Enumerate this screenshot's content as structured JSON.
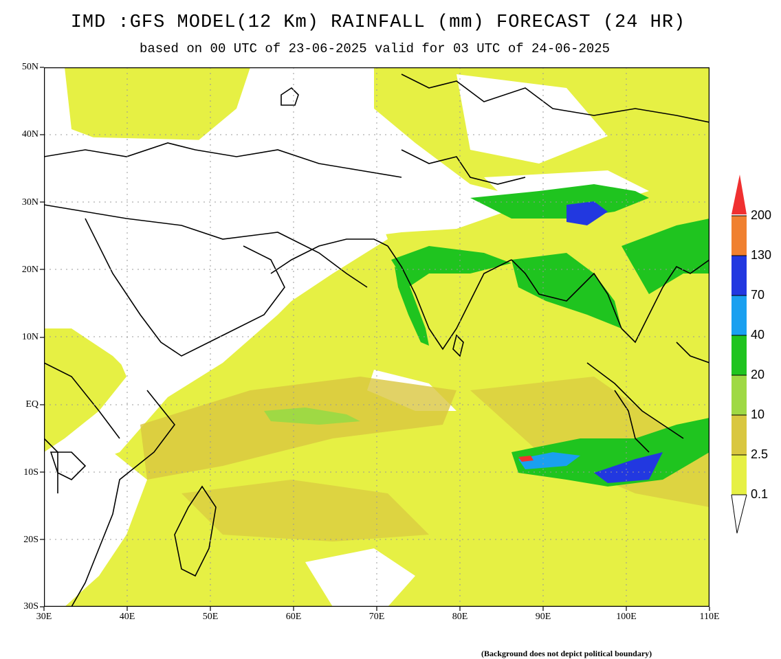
{
  "header": {
    "title": "IMD :GFS MODEL(12 Km) RAINFALL (mm) FORECAST (24 HR)",
    "subtitle": "based on 00 UTC of 23-06-2025 valid for 03 UTC of 24-06-2025"
  },
  "axes": {
    "lat_labels": [
      "50N",
      "40N",
      "30N",
      "20N",
      "10N",
      "EQ",
      "10S",
      "20S",
      "30S"
    ],
    "lon_labels": [
      "30E",
      "40E",
      "50E",
      "60E",
      "70E",
      "80E",
      "90E",
      "100E",
      "110E"
    ]
  },
  "legend": {
    "levels": [
      "0.1",
      "2.5",
      "10",
      "20",
      "40",
      "70",
      "130",
      "200"
    ],
    "colors": [
      "#e6f044",
      "#d9c740",
      "#9fd944",
      "#1fc41f",
      "#1aa0f0",
      "#2238e0",
      "#f08030",
      "#f03030"
    ]
  },
  "footnote": "(Background does not depict political boundary)"
}
